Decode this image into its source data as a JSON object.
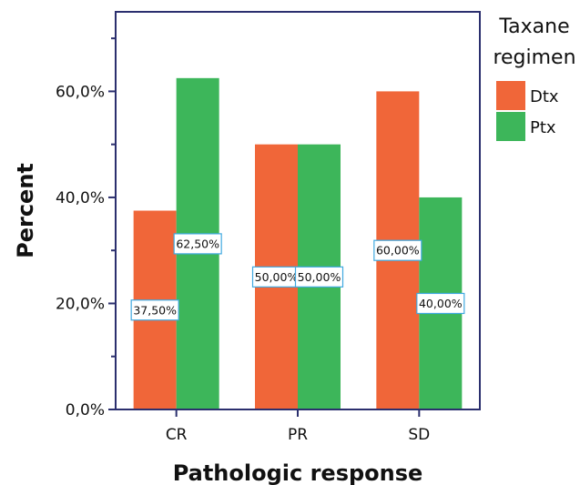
{
  "chart_data": {
    "type": "bar",
    "categories": [
      "CR",
      "PR",
      "SD"
    ],
    "series": [
      {
        "name": "Dtx",
        "values": [
          37.5,
          50.0,
          60.0
        ],
        "labels": [
          "37,50%",
          "50,00%",
          "60,00%"
        ],
        "color": "#F06639"
      },
      {
        "name": "Ptx",
        "values": [
          62.5,
          50.0,
          40.0
        ],
        "labels": [
          "62,50%",
          "50,00%",
          "40,00%"
        ],
        "color": "#3DB65A"
      }
    ],
    "xlabel": "Pathologic response",
    "ylabel": "Percent",
    "ylim": [
      0,
      75
    ],
    "yticks": [
      0,
      20,
      40,
      60
    ],
    "ytick_labels": [
      "0,0%",
      "20,0%",
      "40,0%",
      "60,0%"
    ],
    "legend": {
      "title_lines": [
        "Taxane",
        "regimen"
      ],
      "placement": "top-right"
    },
    "label_box_color": "#3FA9E0",
    "axes_color": "#2B2F6E",
    "grid": false
  }
}
